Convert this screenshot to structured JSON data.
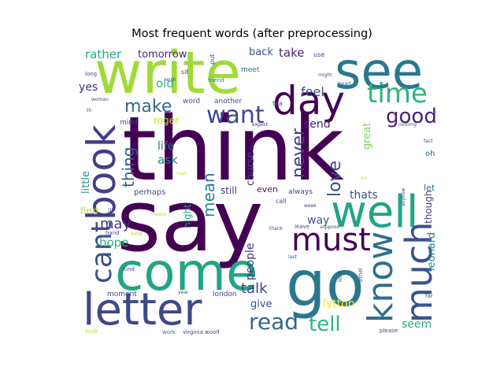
{
  "chart_data": {
    "type": "wordcloud",
    "title": "Most frequent words (after preprocessing)",
    "words": [
      {
        "text": "think",
        "color": "#440154"
      },
      {
        "text": "say",
        "color": "#440154"
      },
      {
        "text": "write",
        "color": "#a0da39"
      },
      {
        "text": "see",
        "color": "#2a788e"
      },
      {
        "text": "come",
        "color": "#21a585"
      },
      {
        "text": "go",
        "color": "#2a788e"
      },
      {
        "text": "day",
        "color": "#440154"
      },
      {
        "text": "letter",
        "color": "#3e4989"
      },
      {
        "text": "well",
        "color": "#21a585"
      },
      {
        "text": "book",
        "color": "#433e85"
      },
      {
        "text": "much",
        "color": "#3b528b"
      },
      {
        "text": "know",
        "color": "#2e6f8e"
      },
      {
        "text": "must",
        "color": "#440154"
      },
      {
        "text": "time",
        "color": "#2fb47c"
      },
      {
        "text": "cant",
        "color": "#3b528b"
      },
      {
        "text": "want",
        "color": "#3e4989"
      },
      {
        "text": "read",
        "color": "#31688e"
      },
      {
        "text": "tell",
        "color": "#2fb47c"
      },
      {
        "text": "make",
        "color": "#31688e"
      },
      {
        "text": "good",
        "color": "#482173"
      },
      {
        "text": "love",
        "color": "#3e4989"
      },
      {
        "text": "never",
        "color": "#433e85"
      },
      {
        "text": "thing",
        "color": "#38588c"
      },
      {
        "text": "mean",
        "color": "#26828e"
      },
      {
        "text": "talk",
        "color": "#433e85"
      },
      {
        "text": "may",
        "color": "#453781"
      },
      {
        "text": "feel",
        "color": "#3b528b"
      },
      {
        "text": "send",
        "color": "#482878"
      },
      {
        "text": "take",
        "color": "#482878"
      },
      {
        "text": "ask",
        "color": "#26828e"
      },
      {
        "text": "life",
        "color": "#2c728e"
      },
      {
        "text": "old",
        "color": "#35b779"
      },
      {
        "text": "yes",
        "color": "#46327e"
      },
      {
        "text": "rather",
        "color": "#22a884"
      },
      {
        "text": "tomorrow",
        "color": "#482878"
      },
      {
        "text": "hope",
        "color": "#2fb47c"
      },
      {
        "text": "people",
        "color": "#46327e"
      },
      {
        "text": "lytton",
        "color": "#fde725"
      },
      {
        "text": "seem",
        "color": "#29af7f"
      },
      {
        "text": "give",
        "color": "#3b528b"
      },
      {
        "text": "way",
        "color": "#38588c"
      },
      {
        "text": "thats",
        "color": "#3b528b"
      },
      {
        "text": "little",
        "color": "#21918c"
      },
      {
        "text": "leonard",
        "color": "#26828e"
      },
      {
        "text": "great",
        "color": "#7ad151"
      },
      {
        "text": "course",
        "color": "#3e4989"
      },
      {
        "text": "night",
        "color": "#1f9e89"
      },
      {
        "text": "find",
        "color": "#bddf26"
      },
      {
        "text": "still",
        "color": "#443983"
      },
      {
        "text": "even",
        "color": "#48186a"
      },
      {
        "text": "roger",
        "color": "#bddf26"
      },
      {
        "text": "back",
        "color": "#3b528b"
      },
      {
        "text": "perhaps",
        "color": "#3b528b"
      },
      {
        "text": "though",
        "color": "#433e85"
      },
      {
        "text": "let",
        "color": "#2c728e"
      },
      {
        "text": "oh",
        "color": "#31688e"
      },
      {
        "text": "always",
        "color": "#414487"
      },
      {
        "text": "london",
        "color": "#3e4989"
      },
      {
        "text": "moment",
        "color": "#3e4989"
      },
      {
        "text": "word",
        "color": "#3b528b"
      },
      {
        "text": "another",
        "color": "#3b528b"
      },
      {
        "text": "meet",
        "color": "#2c728e"
      },
      {
        "text": "tea",
        "color": "#38588c"
      },
      {
        "text": "mind",
        "color": "#3e4989"
      },
      {
        "text": "ill",
        "color": "#3b528b"
      },
      {
        "text": "sit",
        "color": "#3b528b"
      },
      {
        "text": "put",
        "color": "#3e4989"
      },
      {
        "text": "use",
        "color": "#3e4989"
      },
      {
        "text": "friend",
        "color": "#2c728e"
      },
      {
        "text": "wish",
        "color": "#3e4989"
      },
      {
        "text": "long",
        "color": "#3e4989"
      },
      {
        "text": "woman",
        "color": "#3e4989"
      },
      {
        "text": "th",
        "color": "#3e4989"
      },
      {
        "text": "call",
        "color": "#3b528b"
      },
      {
        "text": "expect",
        "color": "#482878"
      },
      {
        "text": "two",
        "color": "#3e4989"
      },
      {
        "text": "nothing",
        "color": "#3b528b"
      },
      {
        "text": "might",
        "color": "#3e4989"
      },
      {
        "text": "heart",
        "color": "#2c728e"
      },
      {
        "text": "fact",
        "color": "#3e4989"
      },
      {
        "text": "week",
        "color": "#3e4989"
      },
      {
        "text": "suppose",
        "color": "#3e4989"
      },
      {
        "text": "anyhow",
        "color": "#3e4989"
      },
      {
        "text": "leave",
        "color": "#3e4989"
      },
      {
        "text": "thank",
        "color": "#3b528b"
      },
      {
        "text": "last",
        "color": "#3e4989"
      },
      {
        "text": "lord",
        "color": "#3e4989"
      },
      {
        "text": "ethel",
        "color": "#3e4989"
      },
      {
        "text": "far",
        "color": "#3e4989"
      },
      {
        "text": "kind",
        "color": "#3e4989"
      },
      {
        "text": "hand",
        "color": "#3e4989"
      },
      {
        "text": "best",
        "color": "#bddf26"
      },
      {
        "text": "man",
        "color": "#bddf26"
      },
      {
        "text": "want",
        "color": "#bddf26"
      },
      {
        "text": "year",
        "color": "#3e4989"
      },
      {
        "text": "look",
        "color": "#bddf26"
      },
      {
        "text": "work",
        "color": "#2c728e"
      },
      {
        "text": "virginia woolf",
        "color": "#3e4989"
      },
      {
        "text": "please",
        "color": "#3e4989"
      },
      {
        "text": "mr",
        "color": "#bddf26"
      }
    ]
  }
}
